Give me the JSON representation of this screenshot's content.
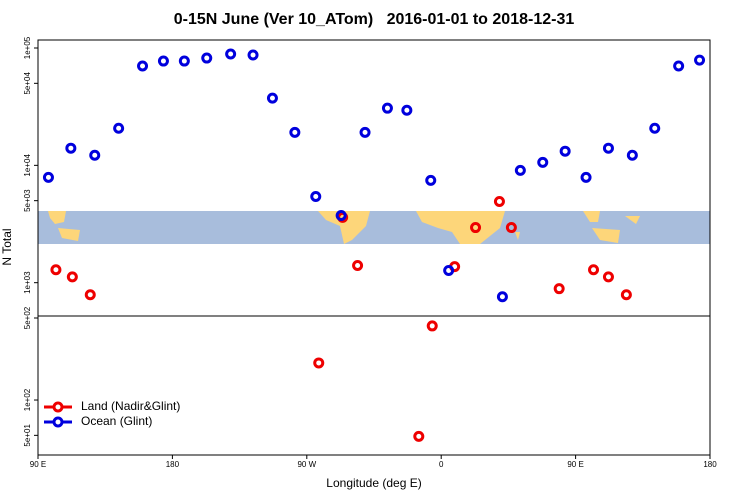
{
  "chart_data": {
    "type": "scatter",
    "title": "0-15N June (Ver 10_ATom)   2016-01-01 to 2018-12-31",
    "x_label": "Longitude (deg E)",
    "y_label": "N Total",
    "xlim": [
      90,
      540
    ],
    "xticks": [
      {
        "value": 90,
        "label": "90 E"
      },
      180,
      {
        "value": 270,
        "label": "90 W"
      },
      {
        "value": 360,
        "label": "0"
      },
      {
        "value": 450,
        "label": "90 E"
      },
      {
        "value": 540,
        "label": "180"
      }
    ],
    "ylim": [
      34,
      117000
    ],
    "y_log": true,
    "yticks": [
      {
        "value": 100000,
        "label": "1e+05"
      },
      {
        "value": 50000,
        "label": "5e+04"
      },
      {
        "value": 10000,
        "label": "1e+04"
      },
      {
        "value": 5000,
        "label": "5e+03"
      },
      {
        "value": 1000,
        "label": "1e+03"
      },
      {
        "value": 500,
        "label": "5e+02"
      },
      {
        "value": 100,
        "label": "1e+02"
      },
      {
        "value": 50,
        "label": "5e+01"
      }
    ],
    "legend": "bottom-left",
    "series": [
      {
        "name": "Land (Nadir&Glint)",
        "color": "#ee0000",
        "x": [
          102,
          113,
          125,
          278,
          294,
          304,
          345,
          354,
          369,
          383,
          399,
          407,
          439,
          462,
          472,
          484
        ],
        "values": [
          1290,
          1120,
          789,
          207,
          3600,
          1400,
          49,
          428,
          1370,
          2950,
          4920,
          2950,
          889,
          1290,
          1120,
          789
        ]
      },
      {
        "name": "Ocean (Glint)",
        "color": "#0000dd",
        "x": [
          97,
          112,
          128,
          144,
          160,
          174,
          188,
          203,
          219,
          234,
          247,
          262,
          276,
          293,
          309,
          324,
          337,
          353,
          365,
          401,
          413,
          428,
          443,
          457,
          472,
          488,
          503,
          519,
          533
        ],
        "values": [
          7890,
          14000,
          12200,
          20700,
          70200,
          77400,
          77400,
          82100,
          88900,
          87200,
          37400,
          19100,
          5430,
          3740,
          19100,
          30700,
          29500,
          7440,
          1270,
          759,
          9060,
          10600,
          13200,
          7890,
          14000,
          12200,
          20700,
          70200,
          78900
        ]
      }
    ]
  }
}
